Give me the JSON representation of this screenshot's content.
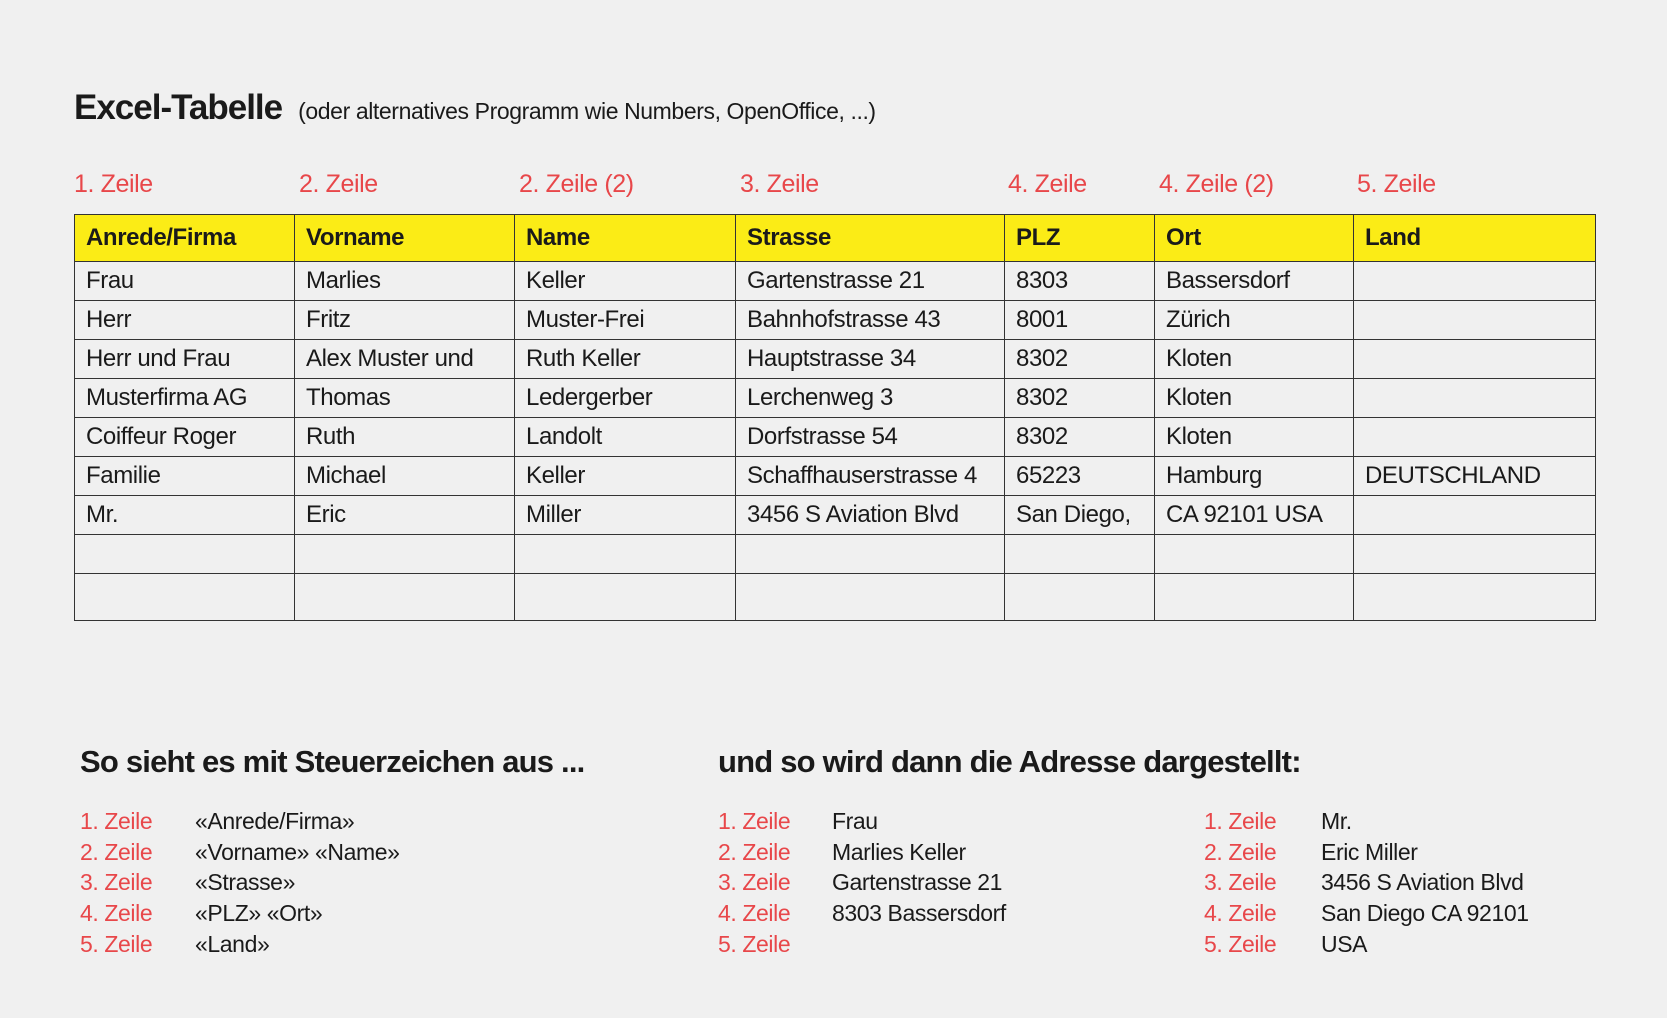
{
  "title": {
    "main": "Excel-Tabelle",
    "sub": "(oder alternatives Programm wie Numbers, OpenOffice, ...)"
  },
  "column_labels": [
    "1. Zeile",
    "2. Zeile",
    "2. Zeile (2)",
    "3. Zeile",
    "4. Zeile",
    "4. Zeile (2)",
    "5. Zeile"
  ],
  "table": {
    "headers": [
      "Anrede/Firma",
      "Vorname",
      "Name",
      "Strasse",
      "PLZ",
      "Ort",
      "Land"
    ],
    "rows": [
      [
        "Frau",
        "Marlies",
        "Keller",
        "Gartenstrasse 21",
        "8303",
        "Bassersdorf",
        ""
      ],
      [
        "Herr",
        "Fritz",
        "Muster-Frei",
        "Bahnhofstrasse 43",
        "8001",
        "Zürich",
        ""
      ],
      [
        "Herr und Frau",
        "Alex Muster und",
        "Ruth Keller",
        "Hauptstrasse 34",
        "8302",
        "Kloten",
        ""
      ],
      [
        "Musterfirma AG",
        "Thomas",
        "Ledergerber",
        "Lerchenweg 3",
        "8302",
        "Kloten",
        ""
      ],
      [
        "Coiffeur Roger",
        "Ruth",
        "Landolt",
        "Dorfstrasse 54",
        "8302",
        "Kloten",
        ""
      ],
      [
        "Familie",
        "Michael",
        "Keller",
        "Schaffhauserstrasse 4",
        "65223",
        "Hamburg",
        "DEUTSCHLAND"
      ],
      [
        "Mr.",
        "Eric",
        "Miller",
        "3456 S Aviation Blvd",
        "San Diego,",
        "CA 92101 USA",
        ""
      ],
      [
        "",
        "",
        "",
        "",
        "",
        "",
        ""
      ],
      [
        "",
        "",
        "",
        "",
        "",
        "",
        ""
      ]
    ]
  },
  "section_left": {
    "heading": "So sieht es mit Steuerzeichen aus ...",
    "lines": [
      [
        "1. Zeile",
        "«Anrede/Firma»"
      ],
      [
        "2. Zeile",
        "«Vorname» «Name»"
      ],
      [
        "3. Zeile",
        "«Strasse»"
      ],
      [
        "4. Zeile",
        "«PLZ» «Ort»"
      ],
      [
        "5. Zeile",
        "«Land»"
      ]
    ]
  },
  "section_right": {
    "heading": "und so wird dann die Adresse dargestellt:",
    "example1": [
      [
        "1. Zeile",
        "Frau"
      ],
      [
        "2. Zeile",
        "Marlies Keller"
      ],
      [
        "3. Zeile",
        "Gartenstrasse 21"
      ],
      [
        "4. Zeile",
        "8303 Bassersdorf"
      ],
      [
        "5. Zeile",
        ""
      ]
    ],
    "example2": [
      [
        "1. Zeile",
        "Mr."
      ],
      [
        "2. Zeile",
        "Eric Miller"
      ],
      [
        "3. Zeile",
        "3456 S Aviation Blvd"
      ],
      [
        "4. Zeile",
        "San Diego CA 92101"
      ],
      [
        "5. Zeile",
        "USA"
      ]
    ]
  },
  "colors": {
    "header_bg": "#fbec16",
    "label_red": "#e8474a",
    "background": "#f0f0f0"
  }
}
